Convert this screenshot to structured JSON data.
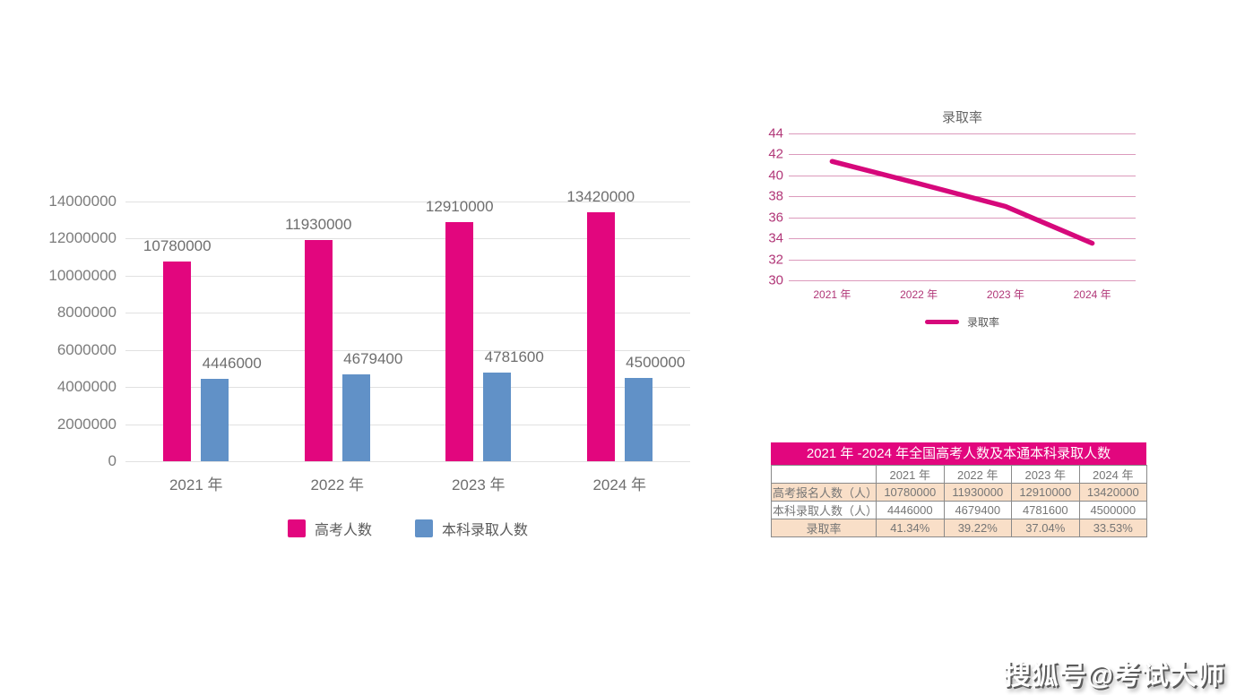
{
  "colors": {
    "pink": "#e2067e",
    "blue": "#6191c7",
    "line_pink": "#d6087b",
    "grid_gray": "#e1e1e1",
    "grid_pink": "#dc9abc",
    "tick_pink": "#b13778",
    "axis_gray": "#6e6e6e",
    "table_title_bg": "#e2067e",
    "table_row_peach": "#f9dfc8",
    "table_border": "#8a8a8a"
  },
  "chart_data": [
    {
      "type": "bar",
      "title": "",
      "categories": [
        "2021 年",
        "2022 年",
        "2023 年",
        "2024 年"
      ],
      "series": [
        {
          "name": "高考人数",
          "color": "#e2067e",
          "values": [
            10780000,
            11930000,
            12910000,
            13420000
          ]
        },
        {
          "name": "本科录取人数",
          "color": "#6191c7",
          "values": [
            4446000,
            4679400,
            4781600,
            4500000
          ]
        }
      ],
      "xlabel": "",
      "ylabel": "",
      "ylim": [
        0,
        14000000
      ],
      "ytick_step": 2000000,
      "yticks": [
        "14000000",
        "12000000",
        "10000000",
        "8000000",
        "6000000",
        "4000000",
        "2000000",
        "0"
      ],
      "grid": true,
      "legend_position": "bottom",
      "data_labels": true
    },
    {
      "type": "line",
      "title": "录取率",
      "categories": [
        "2021 年",
        "2022 年",
        "2023 年",
        "2024 年"
      ],
      "series": [
        {
          "name": "录取率",
          "color": "#d6087b",
          "values": [
            41.34,
            39.22,
            37.04,
            33.53
          ]
        }
      ],
      "xlabel": "",
      "ylabel": "",
      "ylim": [
        30,
        44
      ],
      "ytick_step": 2,
      "yticks": [
        "44",
        "42",
        "40",
        "38",
        "36",
        "34",
        "32",
        "30"
      ],
      "grid": true,
      "legend_position": "bottom"
    }
  ],
  "table": {
    "title": "2021 年 -2024 年全国高考人数及本通本科录取人数",
    "columns": [
      "",
      "2021 年",
      "2022 年",
      "2023 年",
      "2024 年"
    ],
    "rows": [
      {
        "label": "高考报名人数（人）",
        "values": [
          "10780000",
          "11930000",
          "12910000",
          "13420000"
        ]
      },
      {
        "label": "本科录取人数（人）",
        "values": [
          "4446000",
          "4679400",
          "4781600",
          "4500000"
        ]
      },
      {
        "label": "录取率",
        "values": [
          "41.34%",
          "39.22%",
          "37.04%",
          "33.53%"
        ]
      }
    ]
  },
  "watermark": {
    "text": "搜狐号@考试大师"
  }
}
